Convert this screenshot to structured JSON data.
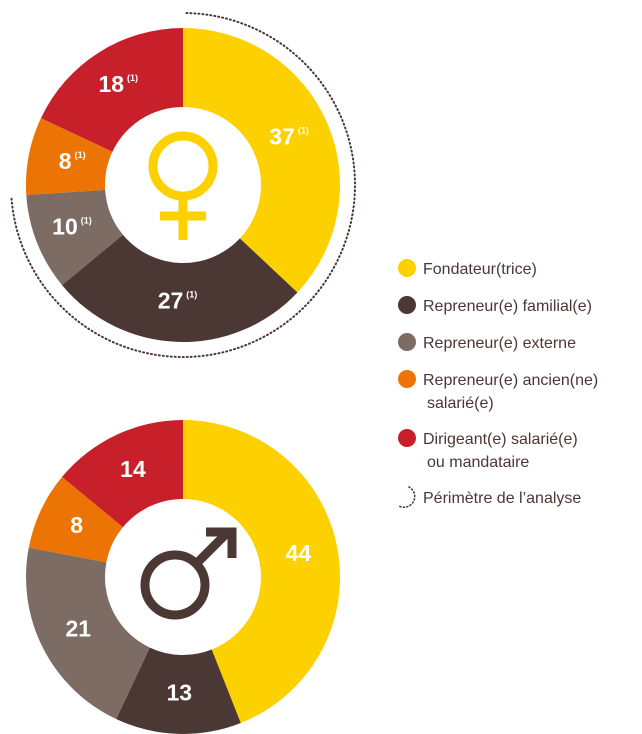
{
  "chart_data": [
    {
      "type": "donut",
      "categories": [
        "Fondateur(trice)",
        "Repreneur(e) familial(e)",
        "Repreneur(e) externe",
        "Repreneur(e) ancien(ne)\nsalarié(e)",
        "Dirigeant(e) salarié(e)\nou mandataire"
      ],
      "values": [
        37,
        27,
        10,
        8,
        18
      ],
      "colors": [
        "#fdd100",
        "#4b3733",
        "#7d6c64",
        "#ec7404",
        "#c8202b"
      ],
      "footnote_marker": "(1)",
      "perimeter_count": 3
    },
    {
      "type": "donut",
      "categories": [
        "Fondateur(trice)",
        "Repreneur(e) familial(e)",
        "Repreneur(e) externe",
        "Repreneur(e) ancien(ne)\nsalarié(e)",
        "Dirigeant(e) salarié(e)\nou mandataire"
      ],
      "values": [
        44,
        13,
        21,
        8,
        14
      ],
      "colors": [
        "#fdd100",
        "#4b3733",
        "#7d6c64",
        "#ec7404",
        "#c8202b"
      ]
    }
  ],
  "perimeter_label": "Périmètre de l’analyse"
}
